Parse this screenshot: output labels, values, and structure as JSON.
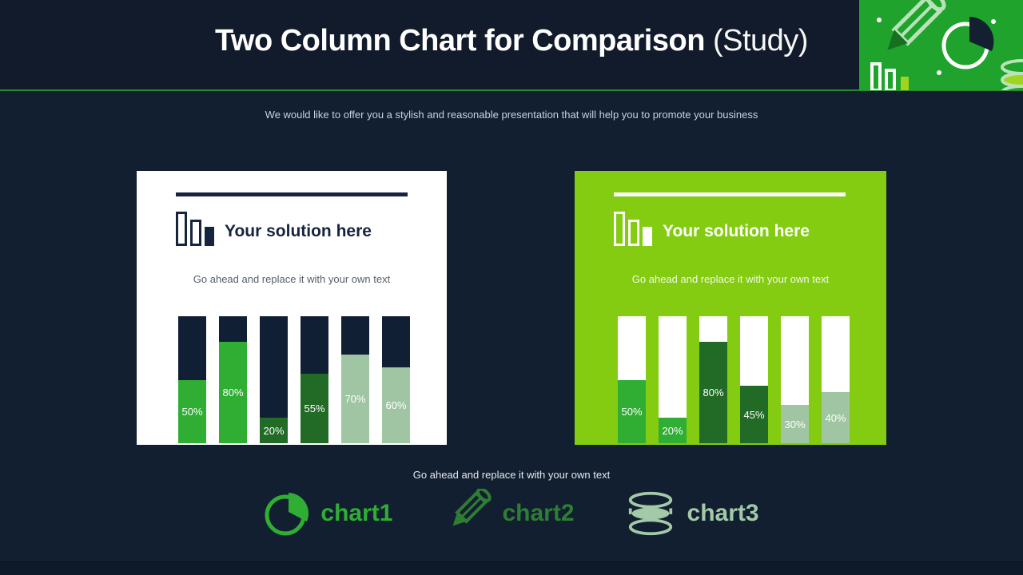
{
  "slide": {
    "title_main": "Two Column Chart for Comparison",
    "title_note": "(Study)",
    "subtitle": "We would like to offer you a stylish and reasonable presentation that will help you to promote your business",
    "footer_note": "Go ahead and replace it with your own text"
  },
  "cards": [
    {
      "title": "Your solution here",
      "subtitle": "Go ahead and replace it with your own text"
    },
    {
      "title": "Your solution here",
      "subtitle": "Go ahead and replace it with your own text"
    }
  ],
  "chart_data": [
    {
      "type": "bar",
      "title": "Your solution here",
      "values": [
        50,
        80,
        20,
        55,
        70,
        60
      ],
      "labels": [
        "50%",
        "80%",
        "20%",
        "55%",
        "70%",
        "60%"
      ],
      "ylim": [
        0,
        100
      ],
      "grid": false,
      "legend": false,
      "bar_colors": [
        "#2fae33",
        "#2fae33",
        "#226b26",
        "#226b26",
        "#a0c5a2",
        "#a0c5a2"
      ],
      "remainder_color": "#101f33",
      "panel_background": "#ffffff"
    },
    {
      "type": "bar",
      "title": "Your solution here",
      "values": [
        50,
        20,
        80,
        45,
        30,
        40
      ],
      "labels": [
        "50%",
        "20%",
        "80%",
        "45%",
        "30%",
        "40%"
      ],
      "ylim": [
        0,
        100
      ],
      "grid": false,
      "legend": false,
      "bar_colors": [
        "#2fae33",
        "#2fae33",
        "#226b26",
        "#226b26",
        "#a0c5a2",
        "#a0c5a2"
      ],
      "remainder_color": "#ffffff",
      "panel_background": "#84cc11"
    }
  ],
  "footer_items": [
    {
      "label": "chart1",
      "icon": "pie-chart-icon",
      "color": "#2fae33"
    },
    {
      "label": "chart2",
      "icon": "pencil-icon",
      "color": "#2e7d32"
    },
    {
      "label": "chart3",
      "icon": "database-icon",
      "color": "#a3c9a8"
    }
  ],
  "colors": {
    "header_bg": "#111b2b",
    "body_bg": "#121f31",
    "divider_green": "#2c8a2e",
    "corner_green": "#1fa32c",
    "navy": "#101f33",
    "bright_green": "#2fae33",
    "dark_green": "#226b26",
    "sage_green": "#a0c5a2",
    "right_card_bg": "#84cc11"
  }
}
